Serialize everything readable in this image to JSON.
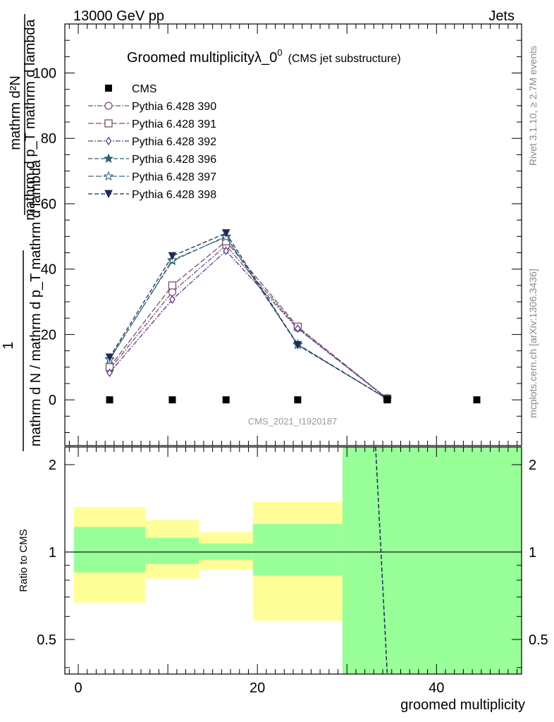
{
  "header": {
    "left": "13000 GeV pp",
    "right": "Jets"
  },
  "side_labels": {
    "rivet": "Rivet 3.1.10, ≥ 2.7M events",
    "mcplots": "mcplots.cern.ch [arXiv:1306.3436]"
  },
  "chart_data": {
    "type": "scatter",
    "title_main": "Groomed multiplicityλ_0",
    "title_sup": "0",
    "title_note": "(CMS jet substructure)",
    "analysis_id": "CMS_2021_I1920187",
    "xlabel": "groomed multiplicity",
    "ylabel_frac_top": "1",
    "ylabel_top_line": "mathrm d²N",
    "ylabel_bottom_line": "mathrm d p_T mathrm d lambda",
    "ylabel_denominator": "mathrm d N / mathrm d p_T mathrm d lambda",
    "ratio_ylabel": "Ratio to CMS",
    "xlim": [
      -1.5,
      49.5
    ],
    "ylim": [
      -14,
      115
    ],
    "ratio_ylim": [
      0.38,
      2.3
    ],
    "main_yticks": [
      "0",
      "20",
      "40",
      "60",
      "80",
      "100"
    ],
    "ratio_yticks": [
      "0.5",
      "1",
      "2"
    ],
    "xticks": [
      "0",
      "20",
      "40"
    ],
    "data": {
      "name": "CMS",
      "x": [
        3.5,
        10.5,
        16.5,
        24.5,
        34.5,
        44.5
      ],
      "y": [
        0,
        0,
        0,
        0,
        0,
        0
      ]
    },
    "ratio_bands": [
      {
        "xlow": -0.5,
        "xhigh": 7.5,
        "green": [
          0.85,
          1.22
        ],
        "yellow": [
          0.67,
          1.43
        ]
      },
      {
        "xlow": 7.5,
        "xhigh": 13.5,
        "green": [
          0.91,
          1.12
        ],
        "yellow": [
          0.81,
          1.29
        ]
      },
      {
        "xlow": 13.5,
        "xhigh": 19.5,
        "green": [
          0.94,
          1.07
        ],
        "yellow": [
          0.87,
          1.17
        ]
      },
      {
        "xlow": 19.5,
        "xhigh": 29.5,
        "green": [
          0.83,
          1.25
        ],
        "yellow": [
          0.58,
          1.49
        ]
      },
      {
        "xlow": 29.5,
        "xhigh": 49.5,
        "green": [
          0.38,
          2.3
        ],
        "yellow": [
          0.38,
          2.3
        ]
      }
    ],
    "ratio_mc_line": {
      "x": [
        33.2,
        34.5
      ],
      "y": [
        2.3,
        0.38
      ]
    },
    "series": [
      {
        "name": "Pythia 6.428 390",
        "color": "#7a4f7f",
        "marker": "circle",
        "dash": "7,2,2,2",
        "x": [
          3.5,
          10.5,
          16.5,
          24.5,
          34.5
        ],
        "y": [
          9.3,
          33.0,
          47.2,
          22.0,
          0.4
        ]
      },
      {
        "name": "Pythia 6.428 391",
        "color": "#7a4f6a",
        "marker": "square",
        "dash": "8,3",
        "x": [
          3.5,
          10.5,
          16.5,
          24.5,
          34.5
        ],
        "y": [
          10.0,
          35.0,
          48.5,
          22.4,
          0.4
        ]
      },
      {
        "name": "Pythia 6.428 392",
        "color": "#5a3a8a",
        "marker": "diamond",
        "dash": "7,2,2,2",
        "x": [
          3.5,
          10.5,
          16.5,
          24.5,
          34.5
        ],
        "y": [
          8.3,
          30.7,
          45.6,
          21.8,
          0.3
        ]
      },
      {
        "name": "Pythia 6.428 396",
        "color": "#2d5f70",
        "marker": "star",
        "dash": "6,3",
        "x": [
          3.5,
          10.5,
          16.5,
          24.5,
          34.5
        ],
        "y": [
          12.5,
          42.5,
          50.0,
          17.0,
          0.3
        ]
      },
      {
        "name": "Pythia 6.428 397",
        "color": "#3b6a7a",
        "marker": "star-open",
        "dash": "8,3",
        "x": [
          3.5,
          10.5,
          16.5,
          24.5,
          34.5
        ],
        "y": [
          12.3,
          42.8,
          49.8,
          16.8,
          0.3
        ]
      },
      {
        "name": "Pythia 6.428 398",
        "color": "#1e2a5a",
        "marker": "triangle-down",
        "dash": "6,3",
        "x": [
          3.5,
          10.5,
          16.5,
          24.5,
          34.5
        ],
        "y": [
          13.0,
          44.0,
          51.0,
          16.8,
          0.3
        ]
      }
    ]
  }
}
